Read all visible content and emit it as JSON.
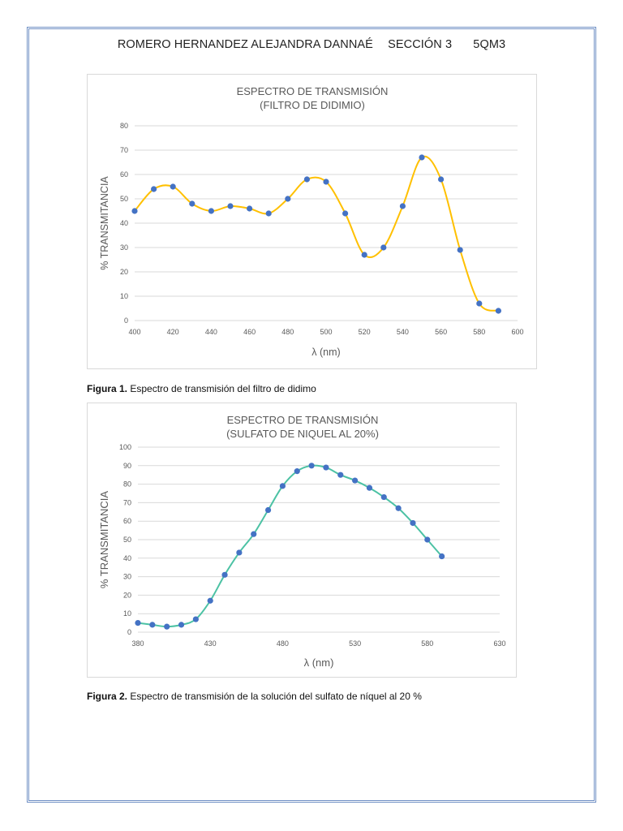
{
  "header": {
    "name": "ROMERO HERNANDEZ ALEJANDRA DANNAÉ",
    "section": "SECCIÓN 3",
    "group": "5QM3"
  },
  "figures": [
    {
      "label": "Figura 1.",
      "text": " Espectro de transmisión del filtro de didimo"
    },
    {
      "label": "Figura 2.",
      "text": " Espectro de transmisión de la solución del sulfato de níquel al 20 %"
    }
  ],
  "colors": {
    "line1": "#FFC000",
    "line2": "#4CC2A4",
    "marker": "#4472C4",
    "grid": "#d9d9d9",
    "title": "#595959"
  },
  "chart_data": [
    {
      "type": "line",
      "title": [
        "ESPECTRO DE TRANSMISIÓN",
        "(FILTRO DE DIDIMIO)"
      ],
      "xlabel": "λ (nm)",
      "ylabel": "% TRANSMITANCIA",
      "xlim": [
        400,
        600
      ],
      "ylim": [
        0,
        80
      ],
      "xticks": [
        400,
        420,
        440,
        460,
        480,
        500,
        520,
        540,
        560,
        580,
        600
      ],
      "yticks": [
        0,
        10,
        20,
        30,
        40,
        50,
        60,
        70,
        80
      ],
      "grid": true,
      "series": [
        {
          "name": "% Transmitancia",
          "x": [
            400,
            410,
            420,
            430,
            440,
            450,
            460,
            470,
            480,
            490,
            500,
            510,
            520,
            530,
            540,
            550,
            560,
            570,
            580,
            590
          ],
          "y": [
            45,
            54,
            55,
            48,
            45,
            47,
            46,
            44,
            50,
            58,
            57,
            44,
            27,
            30,
            47,
            67,
            58,
            29,
            7,
            4
          ]
        }
      ]
    },
    {
      "type": "line",
      "title": [
        "ESPECTRO DE TRANSMISIÓN",
        "(SULFATO DE NIQUEL AL 20%)"
      ],
      "xlabel": "λ (nm)",
      "ylabel": "% TRANSMITANCIA",
      "xlim": [
        380,
        630
      ],
      "ylim": [
        0,
        100
      ],
      "xticks": [
        380,
        430,
        480,
        530,
        580,
        630
      ],
      "yticks": [
        0,
        10,
        20,
        30,
        40,
        50,
        60,
        70,
        80,
        90,
        100
      ],
      "grid": true,
      "series": [
        {
          "name": "% Transmitancia",
          "x": [
            380,
            390,
            400,
            410,
            420,
            430,
            440,
            450,
            460,
            470,
            480,
            490,
            500,
            510,
            520,
            530,
            540,
            550,
            560,
            570,
            580,
            590
          ],
          "y": [
            5,
            4,
            3,
            4,
            7,
            17,
            31,
            43,
            53,
            66,
            79,
            87,
            90,
            89,
            85,
            82,
            78,
            73,
            67,
            59,
            50,
            41
          ]
        }
      ]
    }
  ]
}
